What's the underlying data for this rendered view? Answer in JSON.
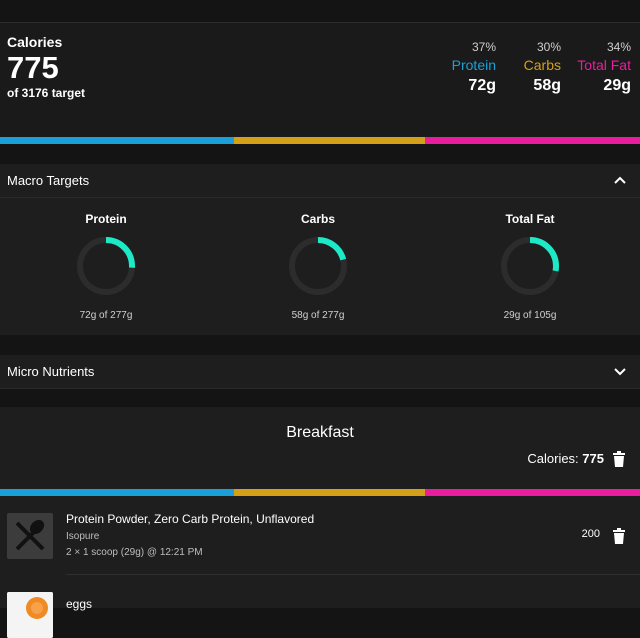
{
  "summary": {
    "calories_label": "Calories",
    "calories_value": "775",
    "calories_target": "of 3176 target",
    "macros": [
      {
        "pct": "37%",
        "name": "Protein",
        "grams": "72g",
        "color": "#1a9fd9"
      },
      {
        "pct": "30%",
        "name": "Carbs",
        "grams": "58g",
        "color": "#d4a017"
      },
      {
        "pct": "34%",
        "name": "Total Fat",
        "grams": "29g",
        "color": "#e91e9f"
      }
    ],
    "bar_fractions": [
      0.37,
      0.3,
      0.34
    ]
  },
  "macro_targets": {
    "title": "Macro Targets",
    "expanded": true,
    "rings": [
      {
        "name": "Protein",
        "sub": "72g of 277g",
        "fraction": 0.26
      },
      {
        "name": "Carbs",
        "sub": "58g of 277g",
        "fraction": 0.21
      },
      {
        "name": "Total Fat",
        "sub": "29g of 105g",
        "fraction": 0.28
      }
    ],
    "ring_color": "#1de9c6",
    "ring_track": "#2c2c2c"
  },
  "micro_nutrients": {
    "title": "Micro Nutrients",
    "expanded": false
  },
  "meal": {
    "title": "Breakfast",
    "calories_label": "Calories:",
    "calories_value": "775",
    "foods": [
      {
        "name": "Protein Powder, Zero Carb Protein, Unflavored",
        "brand": "Isopure",
        "detail": "2 × 1 scoop (29g) @ 12:21 PM",
        "calories": "200",
        "icon": "utensils-icon"
      },
      {
        "name": "eggs",
        "brand": "",
        "detail": "",
        "calories": "",
        "icon": "egg-image"
      }
    ]
  }
}
